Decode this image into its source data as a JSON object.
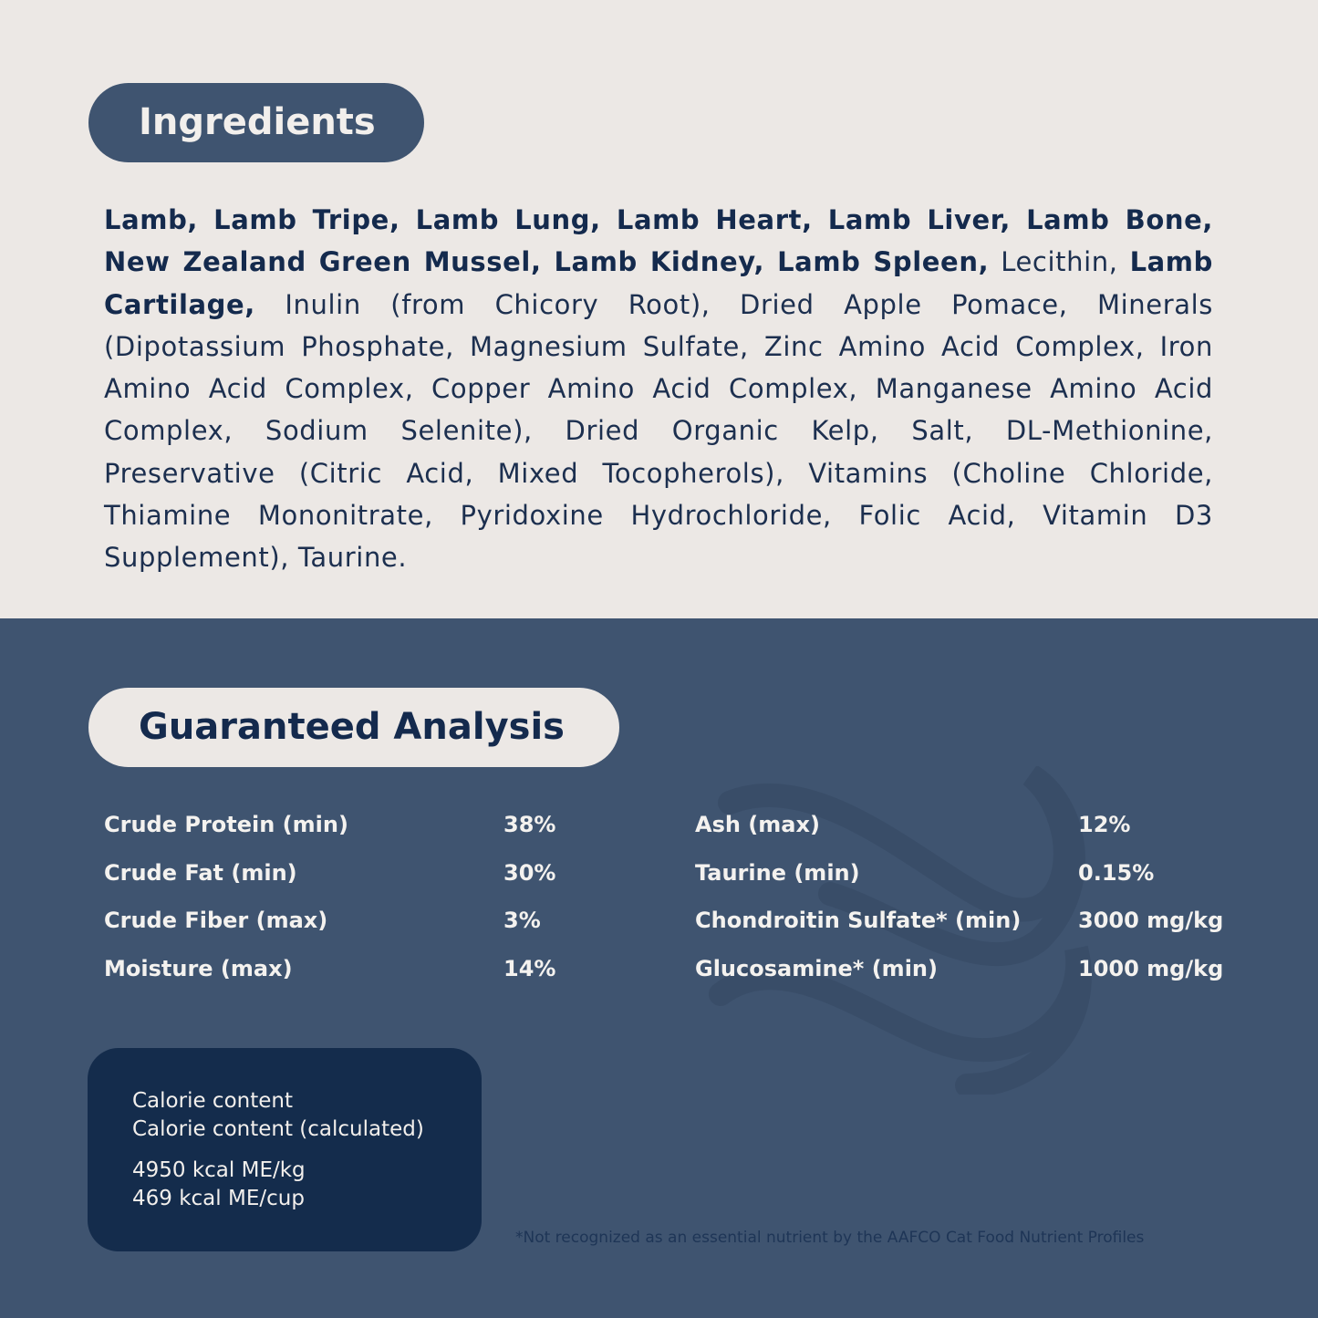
{
  "ingredients": {
    "title": "Ingredients",
    "segments": [
      {
        "text": "Lamb, Lamb Tripe, Lamb Lung, Lamb Heart, Lamb Liver, Lamb Bone, New Zealand Green Mussel, Lamb Kidney, Lamb Spleen,",
        "bold": true
      },
      {
        "text": " Lecithin, ",
        "bold": false
      },
      {
        "text": "Lamb Cartilage,",
        "bold": true
      },
      {
        "text": " Inulin (from Chicory Root), Dried Apple Pomace, Minerals (Dipotassium Phosphate, Magnesium Sulfate, Zinc Amino Acid Complex, Iron Amino Acid Complex, Copper Amino Acid Complex, Manganese Amino Acid Complex, Sodium Selenite), Dried Organic Kelp, Salt, DL-Methionine, Preservative (Citric Acid, Mixed Tocopherols), Vitamins (Choline Chloride, Thiamine Mononitrate, Pyridoxine Hydrochloride, Folic Acid, Vitamin D3 Supplement), Taurine.",
        "bold": false
      }
    ]
  },
  "analysis": {
    "title": "Guaranteed Analysis",
    "left": [
      {
        "label": "Crude Protein (min)",
        "value": "38%"
      },
      {
        "label": "Crude Fat (min)",
        "value": "30%"
      },
      {
        "label": "Crude Fiber (max)",
        "value": "3%"
      },
      {
        "label": "Moisture (max)",
        "value": "14%"
      }
    ],
    "right": [
      {
        "label": "Ash (max)",
        "value": "12%"
      },
      {
        "label": "Taurine (min)",
        "value": "0.15%"
      },
      {
        "label": "Chondroitin Sulfate* (min)",
        "value": "3000 mg/kg"
      },
      {
        "label": "Glucosamine* (min)",
        "value": "1000 mg/kg"
      }
    ]
  },
  "calorie": {
    "line1": "Calorie content",
    "line2": "Calorie content (calculated)",
    "line3": "4950 kcal ME/kg",
    "line4": "469 kcal ME/cup"
  },
  "footnote": "*Not recognized as an essential nutrient by the AAFCO Cat Food Nutrient Profiles",
  "colors": {
    "light_bg": "#ece8e5",
    "dark_bg": "#3f5470",
    "navy": "#142c4c",
    "text_dark": "#142a4d"
  }
}
